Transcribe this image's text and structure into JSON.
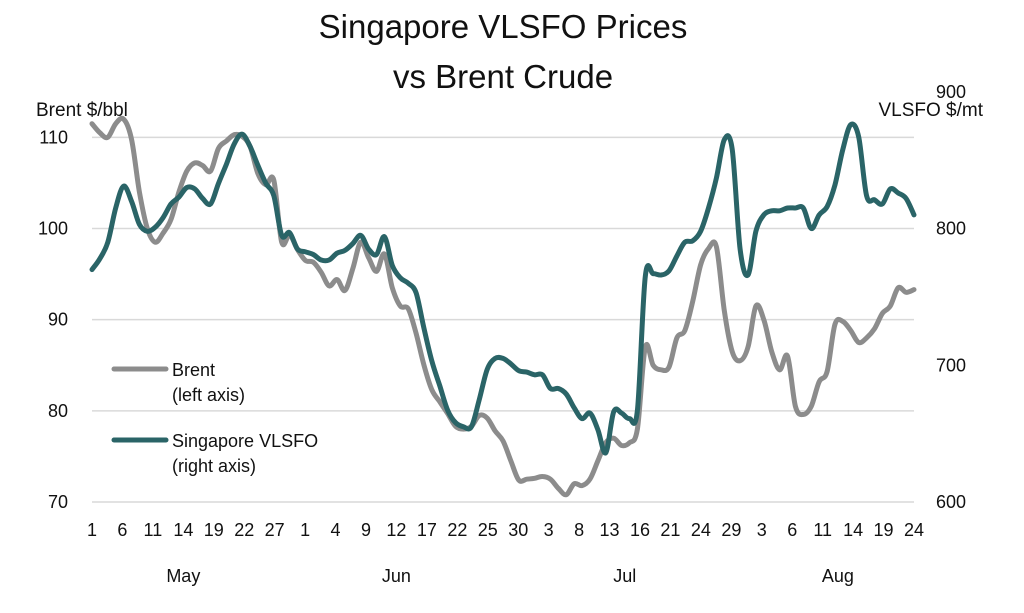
{
  "chart_data": {
    "type": "line",
    "title": [
      "Singapore VLSFO Prices",
      "vs Brent Crude"
    ],
    "ylabel_left": "Brent $/bbl",
    "ylabel_right": "VLSFO $/mt",
    "ylim_left": [
      70,
      113
    ],
    "ylim_right": [
      600,
      886.7
    ],
    "yticks_left": [
      "70",
      "80",
      "90",
      "100",
      "110"
    ],
    "yticks_right": [
      "600",
      "700",
      "800",
      "900"
    ],
    "x_tick_labels": [
      "1",
      "6",
      "11",
      "14",
      "19",
      "22",
      "27",
      "1",
      "4",
      "9",
      "12",
      "17",
      "22",
      "25",
      "30",
      "3",
      "8",
      "13",
      "16",
      "21",
      "24",
      "29",
      "3",
      "6",
      "11",
      "14",
      "19",
      "24"
    ],
    "months": [
      "May",
      "Jun",
      "Jul",
      "Aug"
    ],
    "grid": true,
    "legend": [
      {
        "line1": "Brent",
        "line2": "(left axis)",
        "color": "#8c8c8c"
      },
      {
        "line1": "Singapore VLSFO",
        "line2": "(right axis)",
        "color": "#2a6467"
      }
    ],
    "series": [
      {
        "name": "Brent",
        "axis": "left",
        "color": "#8c8c8c",
        "points": [
          [
            0,
            111.5
          ],
          [
            1,
            110.5
          ],
          [
            2,
            110
          ],
          [
            3,
            111.5
          ],
          [
            4,
            112
          ],
          [
            5,
            109.8
          ],
          [
            6,
            104
          ],
          [
            7,
            100
          ],
          [
            8,
            98.5
          ],
          [
            9,
            99.5
          ],
          [
            10,
            101
          ],
          [
            11,
            104
          ],
          [
            12,
            106.3
          ],
          [
            13,
            107.2
          ],
          [
            14,
            106.9
          ],
          [
            15,
            106.3
          ],
          [
            16,
            108.8
          ],
          [
            17,
            109.6
          ],
          [
            18,
            110.3
          ],
          [
            19,
            110.1
          ],
          [
            20,
            109
          ],
          [
            21,
            106
          ],
          [
            22,
            104.8
          ],
          [
            23,
            105.3
          ],
          [
            24,
            98.5
          ],
          [
            25,
            99.3
          ],
          [
            26,
            97.7
          ],
          [
            27,
            96.5
          ],
          [
            28,
            96.3
          ],
          [
            29,
            95.2
          ],
          [
            30,
            93.7
          ],
          [
            31,
            94.4
          ],
          [
            32,
            93.2
          ],
          [
            33,
            95.6
          ],
          [
            34,
            98.5
          ],
          [
            35,
            96.8
          ],
          [
            36,
            95.3
          ],
          [
            37,
            97.2
          ],
          [
            38,
            93.5
          ],
          [
            39,
            91.5
          ],
          [
            40,
            91.2
          ],
          [
            41,
            88.5
          ],
          [
            42,
            85
          ],
          [
            43,
            82.3
          ],
          [
            44,
            81
          ],
          [
            45,
            79.7
          ],
          [
            46,
            78.3
          ],
          [
            47,
            78
          ],
          [
            48,
            78.3
          ],
          [
            49,
            79.5
          ],
          [
            50,
            79.2
          ],
          [
            51,
            77.8
          ],
          [
            52,
            76.7
          ],
          [
            53,
            74.5
          ],
          [
            54,
            72.4
          ],
          [
            55,
            72.5
          ],
          [
            56,
            72.6
          ],
          [
            57,
            72.8
          ],
          [
            58,
            72.5
          ],
          [
            59,
            71.5
          ],
          [
            60,
            70.8
          ],
          [
            61,
            72
          ],
          [
            62,
            71.8
          ],
          [
            63,
            72.5
          ],
          [
            64,
            74.5
          ],
          [
            65,
            76.5
          ],
          [
            66,
            77
          ],
          [
            67,
            76.2
          ],
          [
            68,
            76.5
          ],
          [
            69,
            78
          ],
          [
            70,
            87
          ],
          [
            71,
            85
          ],
          [
            72,
            84.5
          ],
          [
            73,
            84.8
          ],
          [
            74,
            88
          ],
          [
            75,
            88.8
          ],
          [
            76,
            92
          ],
          [
            77,
            96
          ],
          [
            78,
            97.8
          ],
          [
            79,
            98
          ],
          [
            80,
            91
          ],
          [
            81,
            86.5
          ],
          [
            82,
            85.5
          ],
          [
            83,
            87
          ],
          [
            84,
            91.5
          ],
          [
            85,
            90
          ],
          [
            86,
            86.5
          ],
          [
            87,
            84.5
          ],
          [
            88,
            86
          ],
          [
            89,
            80.5
          ],
          [
            90,
            79.6
          ],
          [
            91,
            80.5
          ],
          [
            92,
            83.2
          ],
          [
            93,
            84.3
          ],
          [
            94,
            89.5
          ],
          [
            95,
            89.8
          ],
          [
            96,
            88.8
          ],
          [
            97,
            87.5
          ],
          [
            98,
            88
          ],
          [
            99,
            89
          ],
          [
            100,
            90.7
          ],
          [
            101,
            91.5
          ],
          [
            102,
            93.5
          ],
          [
            103,
            93
          ],
          [
            104,
            93.3
          ]
        ]
      },
      {
        "name": "Singapore VLSFO",
        "axis": "right",
        "color": "#2a6467",
        "points": [
          [
            0,
            770
          ],
          [
            1,
            778
          ],
          [
            2,
            790
          ],
          [
            3,
            815
          ],
          [
            4,
            831
          ],
          [
            5,
            820
          ],
          [
            6,
            803
          ],
          [
            7,
            798
          ],
          [
            8,
            801
          ],
          [
            9,
            808
          ],
          [
            10,
            818
          ],
          [
            11,
            823
          ],
          [
            12,
            830
          ],
          [
            13,
            829
          ],
          [
            14,
            822
          ],
          [
            15,
            818
          ],
          [
            16,
            833
          ],
          [
            17,
            847
          ],
          [
            18,
            862
          ],
          [
            19,
            869
          ],
          [
            20,
            860
          ],
          [
            21,
            846
          ],
          [
            22,
            833
          ],
          [
            23,
            824
          ],
          [
            24,
            795
          ],
          [
            25,
            797
          ],
          [
            26,
            785
          ],
          [
            27,
            783
          ],
          [
            28,
            781
          ],
          [
            29,
            777
          ],
          [
            30,
            777
          ],
          [
            31,
            782
          ],
          [
            32,
            784
          ],
          [
            33,
            789
          ],
          [
            34,
            795
          ],
          [
            35,
            785
          ],
          [
            36,
            781
          ],
          [
            37,
            794
          ],
          [
            38,
            773
          ],
          [
            39,
            764
          ],
          [
            40,
            760
          ],
          [
            41,
            753
          ],
          [
            42,
            727
          ],
          [
            43,
            703
          ],
          [
            44,
            685
          ],
          [
            45,
            667
          ],
          [
            46,
            658
          ],
          [
            47,
            655
          ],
          [
            48,
            655
          ],
          [
            49,
            675
          ],
          [
            50,
            697
          ],
          [
            51,
            705
          ],
          [
            52,
            705
          ],
          [
            53,
            701
          ],
          [
            54,
            696
          ],
          [
            55,
            695
          ],
          [
            56,
            693
          ],
          [
            57,
            693
          ],
          [
            58,
            683
          ],
          [
            59,
            683
          ],
          [
            60,
            679
          ],
          [
            61,
            669
          ],
          [
            62,
            661
          ],
          [
            63,
            665
          ],
          [
            64,
            653
          ],
          [
            65,
            636
          ],
          [
            66,
            666
          ],
          [
            67,
            665
          ],
          [
            68,
            661
          ],
          [
            69,
            667
          ],
          [
            70,
            765
          ],
          [
            71,
            767
          ],
          [
            72,
            766
          ],
          [
            73,
            769
          ],
          [
            74,
            780
          ],
          [
            75,
            790
          ],
          [
            76,
            791
          ],
          [
            77,
            798
          ],
          [
            78,
            815
          ],
          [
            79,
            837
          ],
          [
            80,
            865
          ],
          [
            81,
            858
          ],
          [
            82,
            785
          ],
          [
            83,
            766
          ],
          [
            84,
            798
          ],
          [
            85,
            810
          ],
          [
            86,
            813
          ],
          [
            87,
            813
          ],
          [
            88,
            815
          ],
          [
            89,
            815
          ],
          [
            90,
            815
          ],
          [
            91,
            800
          ],
          [
            92,
            810
          ],
          [
            93,
            816
          ],
          [
            94,
            832
          ],
          [
            95,
            858
          ],
          [
            96,
            876
          ],
          [
            97,
            867
          ],
          [
            98,
            824
          ],
          [
            99,
            821
          ],
          [
            100,
            818
          ],
          [
            101,
            829
          ],
          [
            102,
            826
          ],
          [
            103,
            822
          ],
          [
            104,
            810
          ]
        ]
      }
    ]
  }
}
